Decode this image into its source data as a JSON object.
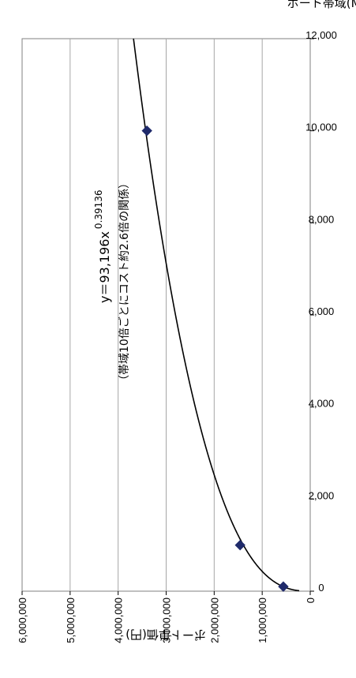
{
  "chart_data": {
    "type": "scatter",
    "xlabel": "ポート帯域(Mbps)",
    "ylabel": "ポート単価(円)",
    "xlim": [
      0,
      12000
    ],
    "ylim": [
      0,
      6000000
    ],
    "x_ticks": [
      "0",
      "2,000",
      "4,000",
      "6,000",
      "8,000",
      "10,000",
      "12,000"
    ],
    "y_ticks": [
      "0",
      "1,000,000",
      "2,000,000",
      "3,000,000",
      "4,000,000",
      "5,000,000",
      "6,000,000"
    ],
    "grid": "horizontal",
    "points": [
      {
        "x": 100,
        "y": 560000
      },
      {
        "x": 1000,
        "y": 1460000
      },
      {
        "x": 10000,
        "y": 3400000
      }
    ],
    "trendline": {
      "type": "power",
      "a": 93196,
      "b": 0.39136
    },
    "annotation": {
      "equation_base": "y＝93,196x",
      "equation_exp": "0.39136",
      "note": "（帯域10倍ごとにコスト約2.6倍の関係）"
    },
    "colors": {
      "marker": "#1f2a6b",
      "line": "#000000",
      "grid": "#a6a6a6"
    }
  }
}
